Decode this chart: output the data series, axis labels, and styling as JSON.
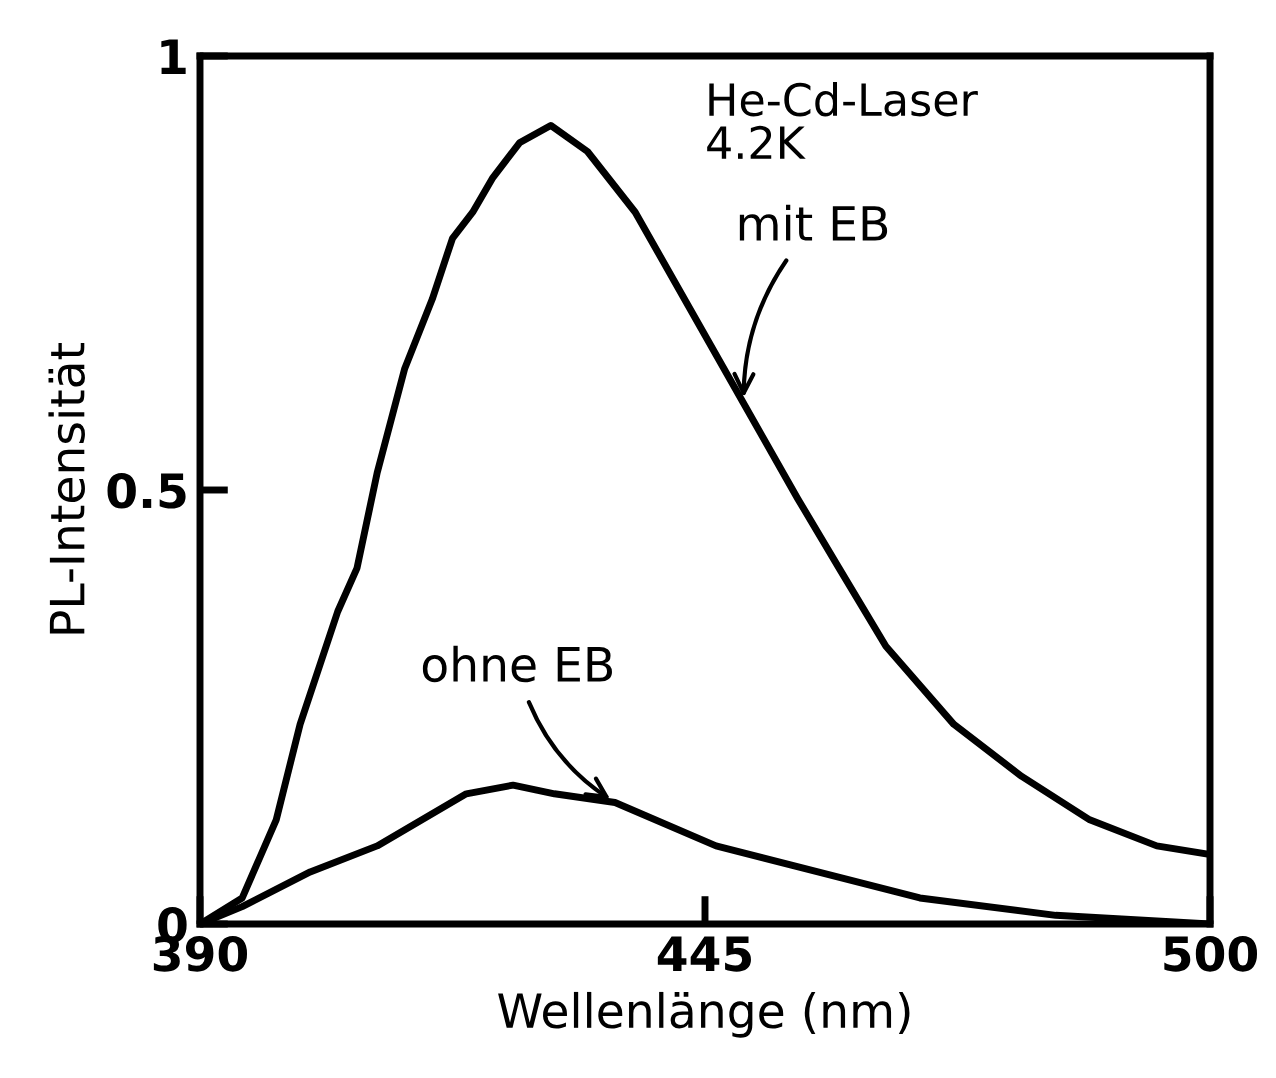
{
  "chart_data": {
    "type": "line",
    "xlabel": "Wellenlänge (nm)",
    "ylabel": "PL-Intensität",
    "xlim": [
      390,
      500
    ],
    "xticks": [
      390,
      445,
      500
    ],
    "ylim": [
      0,
      1
    ],
    "yticks": [
      0,
      0.5,
      1
    ],
    "grid": false,
    "legend": false,
    "annotations": [
      "He-Cd-Laser\n4.2K"
    ],
    "series": [
      {
        "name": "mit EB",
        "color": "#000000",
        "x": [
          390,
          394.6,
          398.3,
          400.9,
          405,
          407.1,
          409.3,
          412.3,
          415.3,
          417.5,
          419.7,
          421.9,
          424.8,
          428.2,
          432.2,
          437.4,
          443.3,
          449.2,
          455.1,
          459.6,
          464.7,
          472.1,
          479.5,
          486.9,
          494.2,
          500
        ],
        "values": [
          0,
          0.03,
          0.12,
          0.23,
          0.36,
          0.41,
          0.52,
          0.64,
          0.72,
          0.79,
          0.82,
          0.86,
          0.9,
          0.92,
          0.89,
          0.82,
          0.71,
          0.6,
          0.49,
          0.41,
          0.32,
          0.23,
          0.17,
          0.12,
          0.09,
          0.08
        ]
      },
      {
        "name": "ohne EB",
        "color": "#000000",
        "x": [
          390,
          394.6,
          402,
          409.3,
          419,
          424.1,
          428.6,
          435.2,
          446.2,
          457.3,
          468.4,
          483.2,
          500
        ],
        "values": [
          0,
          0.02,
          0.06,
          0.09,
          0.15,
          0.16,
          0.15,
          0.14,
          0.09,
          0.06,
          0.03,
          0.01,
          0
        ]
      }
    ]
  }
}
